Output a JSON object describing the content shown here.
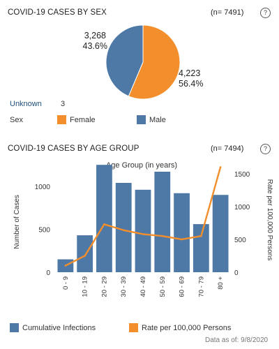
{
  "sex_section": {
    "title": "COVID-19 CASES BY SEX",
    "n_label": "(n= 7491)",
    "help_glyph": "?",
    "male_count": "3,268",
    "male_pct": "43.6%",
    "female_count": "4,223",
    "female_pct": "56.4%",
    "unknown_label": "Unknown",
    "unknown_value": "3",
    "legend_title": "Sex",
    "legend_female": "Female",
    "legend_male": "Male"
  },
  "age_section": {
    "title": "COVID-19 CASES BY AGE GROUP",
    "n_label": "(n= 7494)",
    "help_glyph": "?",
    "legend_bar": "Cumulative Infections",
    "legend_line": "Rate per 100,000 Persons"
  },
  "footer": "Data as of:  9/8/2020",
  "colors": {
    "female": "#f28e2b",
    "male": "#4e79a7",
    "bar": "#4e79a7",
    "line": "#f28e2b"
  },
  "chart_data": [
    {
      "type": "pie",
      "title": "COVID-19 CASES BY SEX",
      "categories": [
        "Female",
        "Male"
      ],
      "values": [
        4223,
        3268
      ],
      "percent": [
        56.4,
        43.6
      ]
    },
    {
      "type": "bar",
      "title": "Age Group (in years)",
      "categories": [
        "0 - 9",
        "10 - 19",
        "20 - 29",
        "30 - 39",
        "40 - 49",
        "50 - 59",
        "60 - 69",
        "70 - 79",
        "80 +"
      ],
      "series": [
        {
          "name": "Cumulative Infections",
          "type": "bar",
          "axis": "left",
          "values": [
            150,
            430,
            1250,
            1040,
            960,
            1170,
            920,
            560,
            900
          ]
        },
        {
          "name": "Rate per 100,000 Persons",
          "type": "line",
          "axis": "right",
          "values": [
            100,
            250,
            730,
            640,
            580,
            550,
            500,
            550,
            1600
          ]
        }
      ],
      "ylabel": "Number of Cases",
      "y2label": "Rate per 100,000 Persons",
      "ylim": [
        0,
        1300
      ],
      "y2lim": [
        0,
        1700
      ],
      "yticks": [
        0,
        500,
        1000
      ],
      "y2ticks": [
        0,
        500,
        1000,
        1500
      ],
      "grid": false,
      "legend": "bottom"
    }
  ]
}
